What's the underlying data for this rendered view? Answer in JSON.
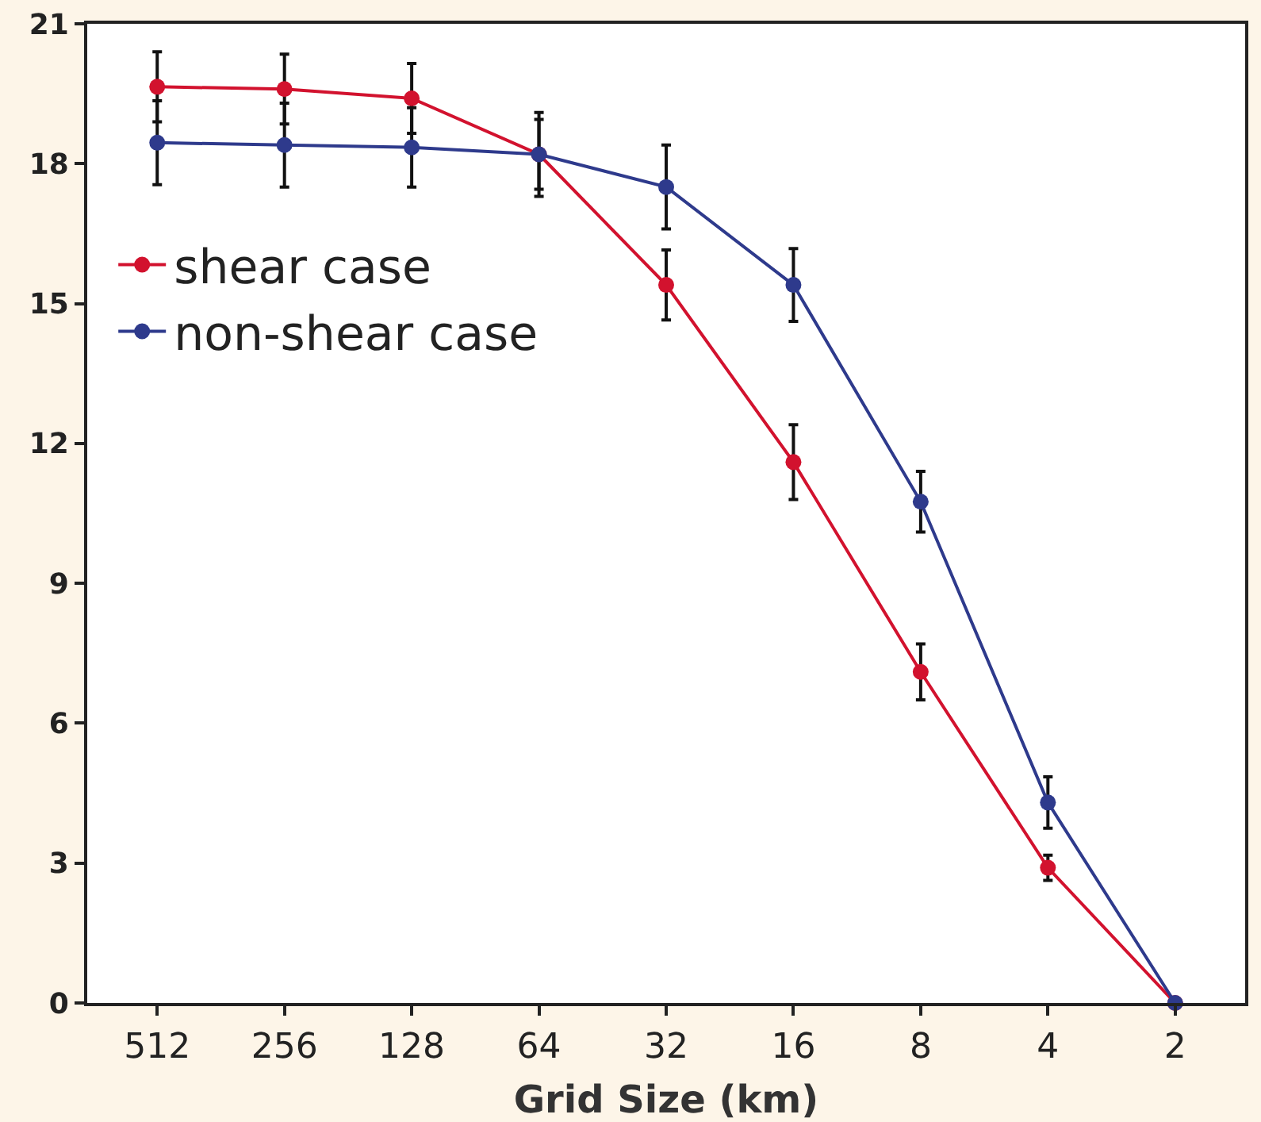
{
  "chart_data": {
    "type": "line",
    "xlabel": "Grid Size (km)",
    "categories": [
      "512",
      "256",
      "128",
      "64",
      "32",
      "16",
      "8",
      "4",
      "2"
    ],
    "series": [
      {
        "name": "shear case",
        "color": "#d2122e",
        "values": [
          19.65,
          19.6,
          19.4,
          18.2,
          15.4,
          11.6,
          7.1,
          2.9,
          0
        ],
        "errors": [
          0.75,
          0.75,
          0.75,
          0.9,
          0.75,
          0.8,
          0.6,
          0.27,
          null
        ]
      },
      {
        "name": "non-shear case",
        "color": "#2e3a8c",
        "values": [
          18.45,
          18.4,
          18.35,
          18.2,
          17.5,
          15.4,
          10.75,
          4.3,
          0
        ],
        "errors": [
          0.9,
          0.9,
          0.85,
          0.75,
          0.9,
          0.78,
          0.65,
          0.55,
          null
        ]
      }
    ],
    "ylim": [
      0,
      21
    ],
    "yticks": [
      0,
      3,
      6,
      9,
      12,
      15,
      18,
      21
    ],
    "grid": false,
    "legend": "left",
    "marker": "circle",
    "line_style": "solid"
  }
}
